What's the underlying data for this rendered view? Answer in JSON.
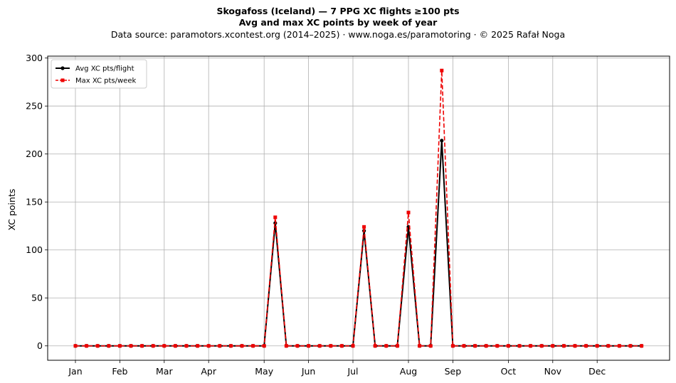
{
  "chart_data": {
    "type": "line",
    "title": "Skogafoss (Iceland)  —  7 PPG XC flights ≥100 pts",
    "subtitle": "Avg and max XC points by week of year",
    "source_line": "Data source: paramotors.xcontest.org (2014–2025)  ·  www.noga.es/paramotoring  ·  © 2025 Rafał Noga",
    "xlabel": "",
    "ylabel": "XC points",
    "xlim": [
      -1,
      54
    ],
    "ylim": [
      -15,
      302
    ],
    "yticks": [
      0,
      50,
      100,
      150,
      200,
      250,
      300
    ],
    "xticks": [
      {
        "week": 0,
        "label": "Jan"
      },
      {
        "week": 4,
        "label": "Feb"
      },
      {
        "week": 8,
        "label": "Mar"
      },
      {
        "week": 12,
        "label": "Apr"
      },
      {
        "week": 17,
        "label": "May"
      },
      {
        "week": 21,
        "label": "Jun"
      },
      {
        "week": 25,
        "label": "Jul"
      },
      {
        "week": 30,
        "label": "Aug"
      },
      {
        "week": 34,
        "label": "Sep"
      },
      {
        "week": 39,
        "label": "Oct"
      },
      {
        "week": 43,
        "label": "Nov"
      },
      {
        "week": 47,
        "label": "Dec"
      }
    ],
    "grid": true,
    "legend_position": "top-left",
    "x": [
      0,
      1,
      2,
      3,
      4,
      5,
      6,
      7,
      8,
      9,
      10,
      11,
      12,
      13,
      14,
      15,
      16,
      17,
      18,
      19,
      20,
      21,
      22,
      23,
      24,
      25,
      26,
      27,
      28,
      29,
      30,
      31,
      32,
      33,
      34,
      35,
      36,
      37,
      38,
      39,
      40,
      41,
      42,
      43,
      44,
      45,
      46,
      47,
      48,
      49,
      50,
      51
    ],
    "series": [
      {
        "name": "Avg XC pts/flight",
        "color": "#000000",
        "style": "solid",
        "marker": "circle",
        "values": [
          0,
          0,
          0,
          0,
          0,
          0,
          0,
          0,
          0,
          0,
          0,
          0,
          0,
          0,
          0,
          0,
          0,
          0,
          128,
          0,
          0,
          0,
          0,
          0,
          0,
          0,
          120,
          0,
          0,
          0,
          124,
          0,
          0,
          214,
          0,
          0,
          0,
          0,
          0,
          0,
          0,
          0,
          0,
          0,
          0,
          0,
          0,
          0,
          0,
          0,
          0,
          0
        ]
      },
      {
        "name": "Max XC pts/week",
        "color": "#ee0000",
        "style": "dashed",
        "marker": "square",
        "values": [
          0,
          0,
          0,
          0,
          0,
          0,
          0,
          0,
          0,
          0,
          0,
          0,
          0,
          0,
          0,
          0,
          0,
          0,
          134,
          0,
          0,
          0,
          0,
          0,
          0,
          0,
          124,
          0,
          0,
          0,
          139,
          0,
          0,
          287,
          0,
          0,
          0,
          0,
          0,
          0,
          0,
          0,
          0,
          0,
          0,
          0,
          0,
          0,
          0,
          0,
          0,
          0
        ]
      }
    ]
  }
}
